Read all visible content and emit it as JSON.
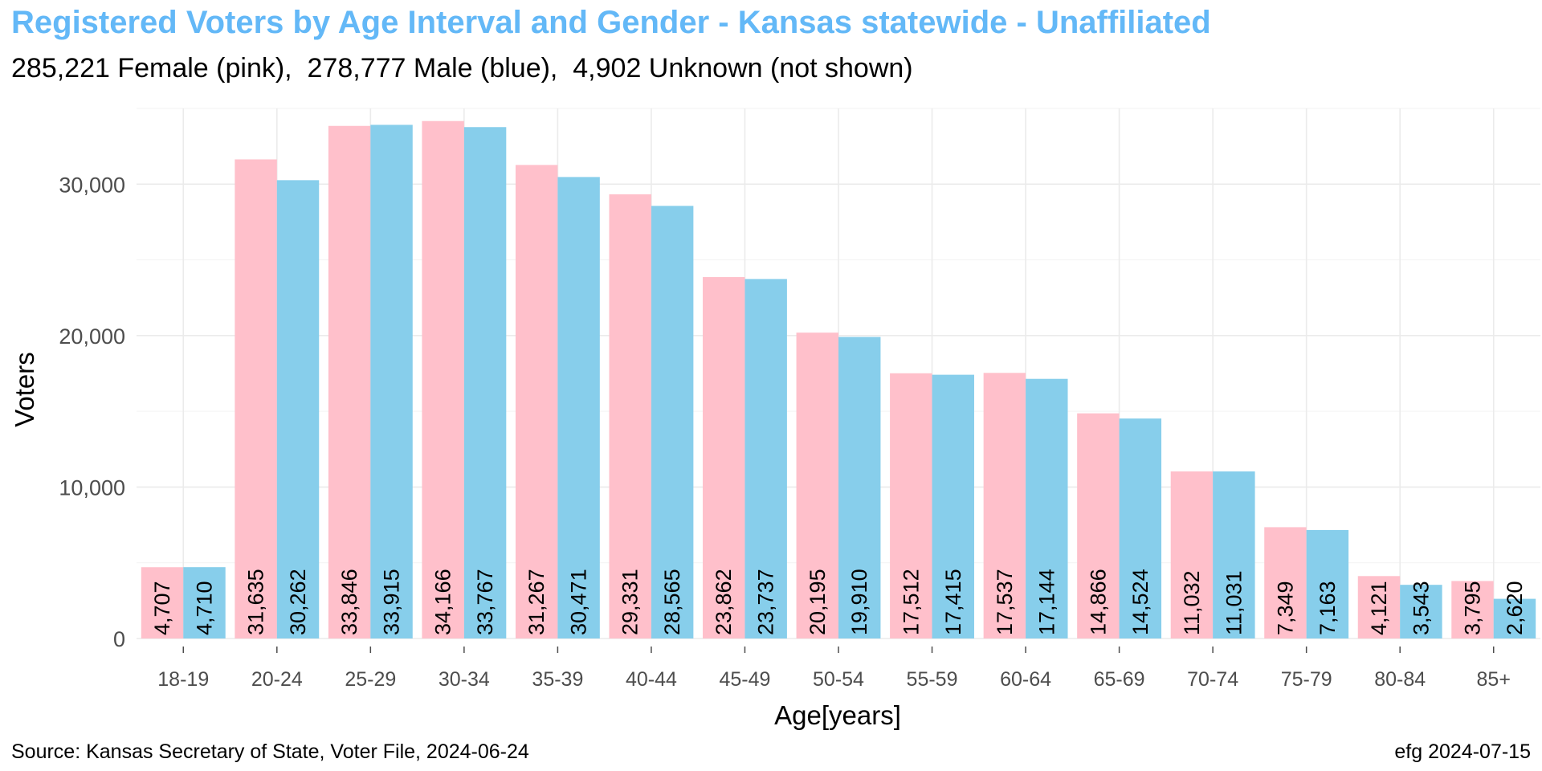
{
  "chart_data": {
    "type": "bar",
    "title": "Registered Voters by Age Interval and Gender - Kansas statewide - Unaffiliated",
    "subtitle": "285,221 Female (pink),  278,777 Male (blue),  4,902 Unknown (not shown)",
    "xlabel": "Age[years]",
    "ylabel": "Voters",
    "ylim": [
      0,
      35000
    ],
    "yticks": [
      0,
      10000,
      20000,
      30000
    ],
    "ytick_labels": [
      "0",
      "10,000",
      "20,000",
      "30,000"
    ],
    "grid": true,
    "categories": [
      "18-19",
      "20-24",
      "25-29",
      "30-34",
      "35-39",
      "40-44",
      "45-49",
      "50-54",
      "55-59",
      "60-64",
      "65-69",
      "70-74",
      "75-79",
      "80-84",
      "85+"
    ],
    "series": [
      {
        "color": "#ffc0cb",
        "values": [
          4707,
          31635,
          33846,
          34166,
          31267,
          29331,
          23862,
          20195,
          17512,
          17537,
          14866,
          11032,
          7349,
          4121,
          3795
        ],
        "labels": [
          "4,707",
          "31,635",
          "33,846",
          "34,166",
          "31,267",
          "29,331",
          "23,862",
          "20,195",
          "17,512",
          "17,537",
          "14,866",
          "11,032",
          "7,349",
          "4,121",
          "3,795"
        ]
      },
      {
        "color": "#87ceeb",
        "values": [
          4710,
          30262,
          33915,
          33767,
          30471,
          28565,
          23737,
          19910,
          17415,
          17144,
          14524,
          11031,
          7163,
          3543,
          2620
        ],
        "labels": [
          "4,710",
          "30,262",
          "33,915",
          "33,767",
          "30,471",
          "28,565",
          "23,737",
          "19,910",
          "17,415",
          "17,144",
          "14,524",
          "11,031",
          "7,163",
          "3,543",
          "2,620"
        ]
      }
    ]
  },
  "captions": {
    "source": "Source: Kansas Secretary of State, Voter File, 2024-06-24",
    "credit": "efg 2024-07-15"
  }
}
